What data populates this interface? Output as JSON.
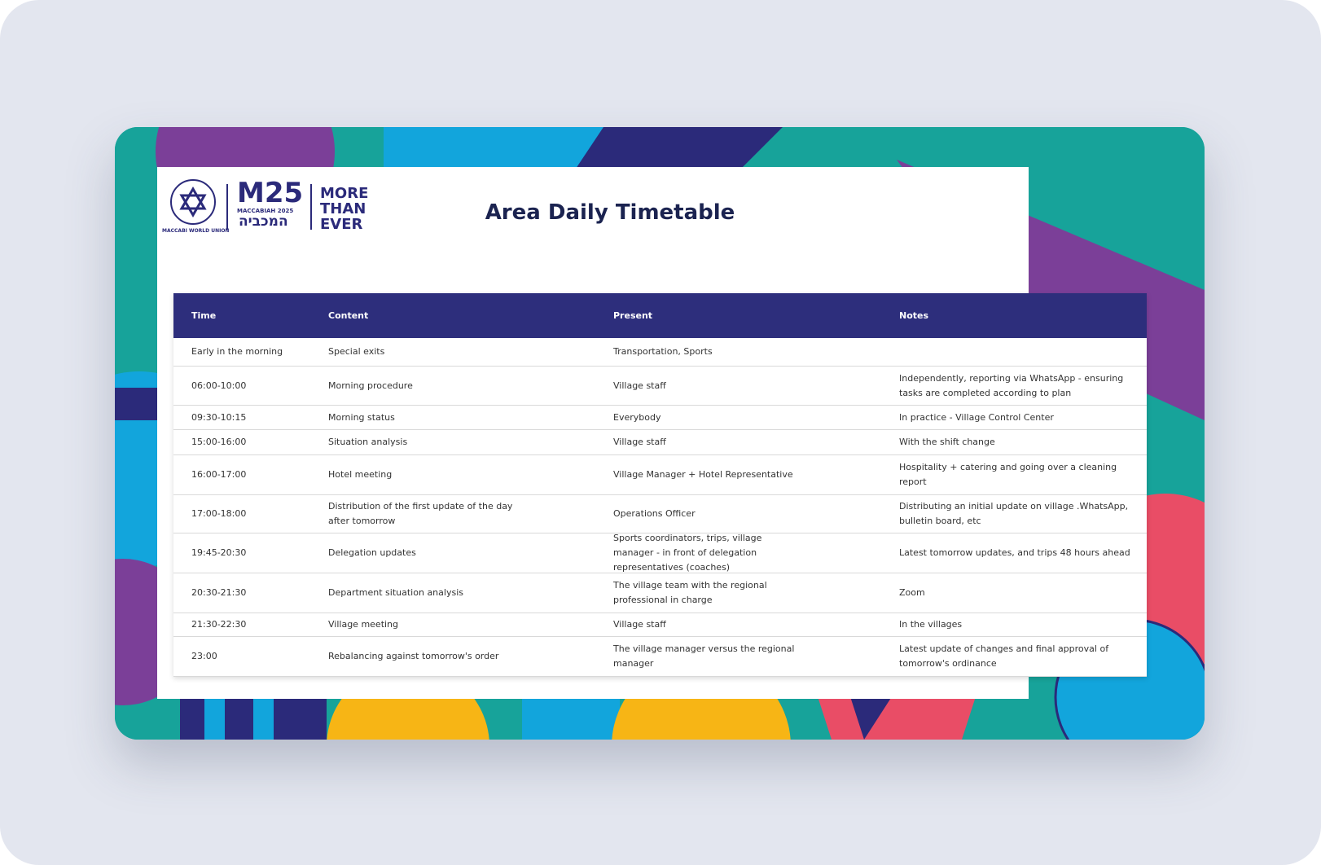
{
  "logo": {
    "union": "MACCABI WORLD UNION",
    "mark": "M25",
    "edition": "MACCABIAH 2025",
    "hebrew": "המכביה",
    "slogan": [
      "MORE",
      "THAN",
      "EVER"
    ]
  },
  "header": {
    "title": "Area Daily Timetable"
  },
  "table": {
    "columns": [
      "Time",
      "Content",
      "Present",
      "Notes"
    ],
    "rows": [
      [
        "Early in the morning",
        "Special exits",
        "Transportation, Sports",
        null
      ],
      [
        "06:00-10:00",
        "Morning procedure",
        "Village staff",
        "Independently, reporting via WhatsApp - ensuring tasks are completed according to plan"
      ],
      [
        "09:30-10:15",
        "Morning status",
        "Everybody",
        "In practice - Village Control Center"
      ],
      [
        "15:00-16:00",
        "Situation analysis",
        "Village staff",
        "With the shift change"
      ],
      [
        "16:00-17:00",
        "Hotel meeting",
        "Village Manager + Hotel Representative",
        "Hospitality + catering and going over a cleaning report"
      ],
      [
        "17:00-18:00",
        "Distribution of the first update of the day after tomorrow",
        "Operations Officer",
        "Distributing an initial update on village .WhatsApp, bulletin board, etc"
      ],
      [
        "19:45-20:30",
        "Delegation updates",
        "Sports coordinators, trips, village manager - in front of delegation representatives (coaches)",
        "Latest tomorrow updates, and trips 48 hours ahead"
      ],
      [
        "20:30-21:30",
        "Department situation analysis",
        "The village team with the regional professional in charge",
        "Zoom"
      ],
      [
        "21:30-22:30",
        "Village meeting",
        "Village staff",
        "In the villages"
      ],
      [
        "23:00",
        "Rebalancing against tomorrow's order",
        "The village manager versus the regional manager",
        "Latest update of changes and final approval of tomorrow's ordinance"
      ]
    ]
  }
}
